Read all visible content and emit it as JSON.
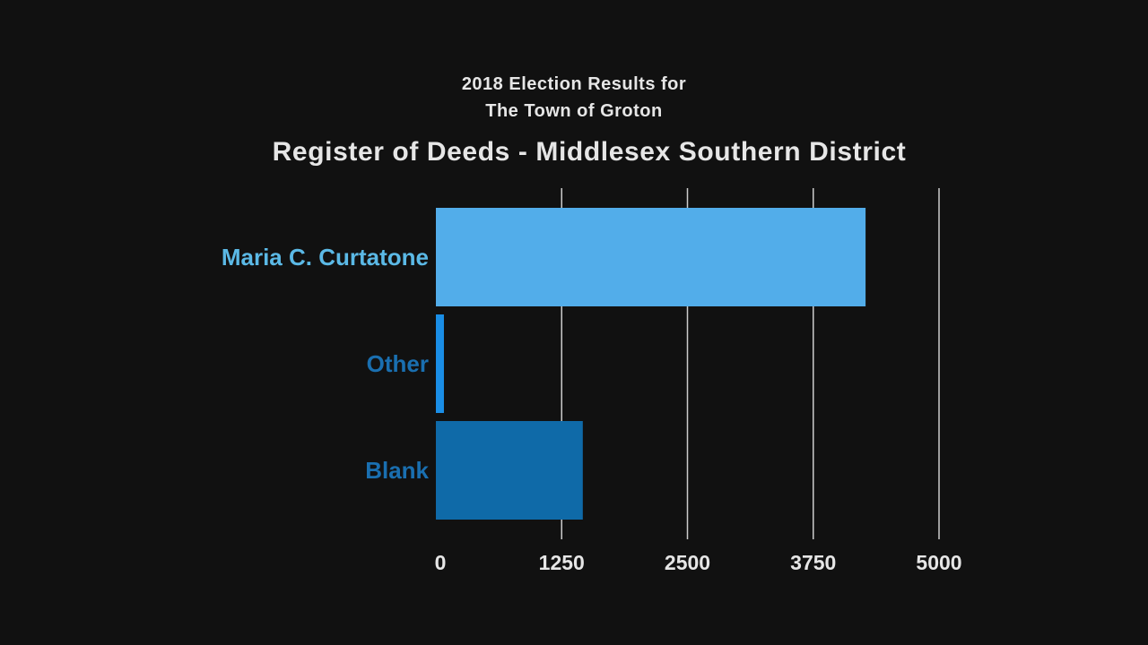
{
  "header": {
    "line1": "2018 Election Results for",
    "line2": "The Town of Groton"
  },
  "chart_data": {
    "type": "bar",
    "orientation": "horizontal",
    "title": "Register of Deeds - Middlesex Southern District",
    "categories": [
      "Maria C. Curtatone",
      "Other",
      "Blank"
    ],
    "values": [
      4270,
      80,
      1460
    ],
    "colors": [
      "#52adea",
      "#1a8ee6",
      "#0f6aa8"
    ],
    "label_colors": [
      "#5bb9e6",
      "#1a6fb0",
      "#1a6fb0"
    ],
    "xlim": [
      0,
      5000
    ],
    "xticks": [
      0,
      1250,
      2500,
      3750,
      5000
    ],
    "grid": true,
    "legend": "none",
    "background": "#111111",
    "gridline_color": "#cccccc",
    "tick_label_color": "#e6e6e6"
  }
}
